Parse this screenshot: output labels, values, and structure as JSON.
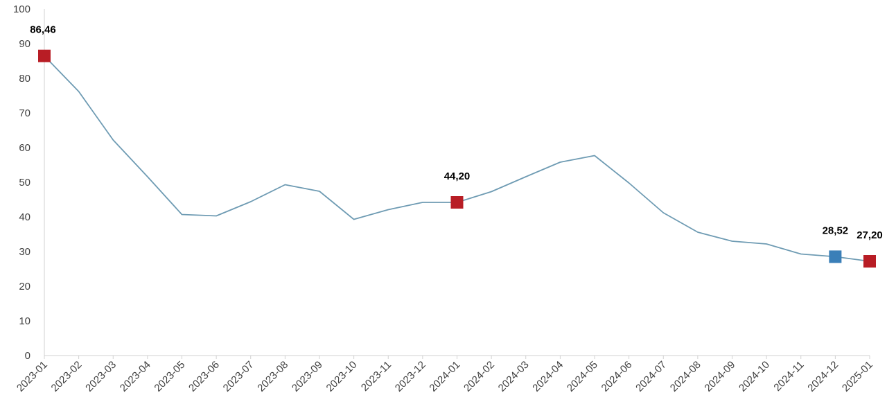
{
  "chart_data": {
    "type": "line",
    "title": "",
    "xlabel": "",
    "ylabel": "",
    "ylim": [
      0,
      100
    ],
    "yticks": [
      0,
      10,
      20,
      30,
      40,
      50,
      60,
      70,
      80,
      90,
      100
    ],
    "grid": false,
    "categories": [
      "2023-01",
      "2023-02",
      "2023-03",
      "2023-04",
      "2023-05",
      "2023-06",
      "2023-07",
      "2023-08",
      "2023-09",
      "2023-10",
      "2023-11",
      "2023-12",
      "2024-01",
      "2024-02",
      "2024-03",
      "2024-04",
      "2024-05",
      "2024-06",
      "2024-07",
      "2024-08",
      "2024-09",
      "2024-10",
      "2024-11",
      "2024-12",
      "2025-01"
    ],
    "series": [
      {
        "values": [
          86.46,
          76.2,
          62.2,
          51.6,
          40.7,
          40.3,
          44.4,
          49.3,
          47.4,
          39.3,
          42.1,
          44.2,
          44.2,
          47.3,
          51.6,
          55.8,
          57.7,
          49.8,
          41.2,
          35.6,
          33.0,
          32.2,
          29.3,
          28.52,
          27.2
        ],
        "color": "#6e9bb3"
      }
    ],
    "markers": [
      {
        "index": 0,
        "label": "86,46",
        "color": "#b81d25"
      },
      {
        "index": 12,
        "label": "44,20",
        "color": "#b81d25"
      },
      {
        "index": 23,
        "label": "28,52",
        "color": "#3a7fb8"
      },
      {
        "index": 24,
        "label": "27,20",
        "color": "#b81d25"
      }
    ]
  }
}
